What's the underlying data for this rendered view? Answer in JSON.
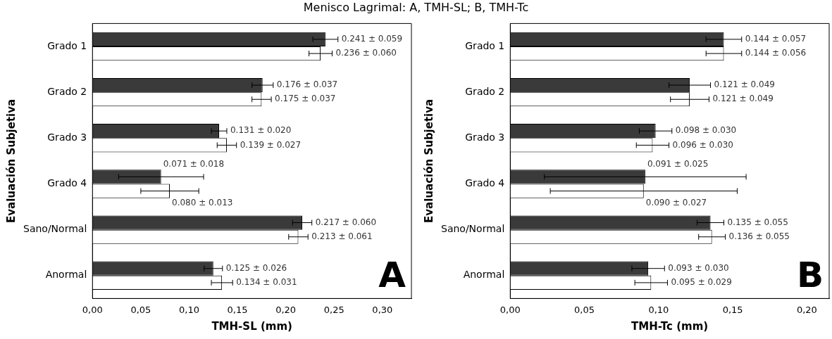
{
  "chart_data": [
    {
      "type": "bar",
      "orientation": "horizontal",
      "title": "Menisco Lagrimal: A, TMH-SL; B, TMH-Tc",
      "categories": [
        "Grado 1",
        "Grado 2",
        "Grado 3",
        "Grado 4",
        "Sano/Normal",
        "Anormal"
      ],
      "series": [
        {
          "color": "#3a3a3a",
          "values": [
            0.241,
            0.176,
            0.131,
            0.071,
            0.217,
            0.125
          ],
          "errors": [
            0.013,
            0.011,
            0.008,
            0.044,
            0.01,
            0.0095
          ],
          "value_labels": [
            "0.241 ± 0.059",
            "0.176 ± 0.037",
            "0.131 ± 0.020",
            "0.071 ± 0.018",
            "0.217 ± 0.060",
            "0.125 ± 0.026"
          ]
        },
        {
          "color": "#ffffff",
          "values": [
            0.236,
            0.175,
            0.139,
            0.08,
            0.213,
            0.134
          ],
          "errors": [
            0.012,
            0.01,
            0.01,
            0.03,
            0.01,
            0.011
          ],
          "value_labels": [
            "0.236 ± 0.060",
            "0.175 ± 0.037",
            "0.139 ± 0.027",
            "0.080 ± 0.013",
            "0.213 ± 0.061",
            "0.134 ± 0.031"
          ]
        }
      ],
      "xlim": [
        0,
        0.33
      ],
      "xticks": [
        {
          "value": 0,
          "label": "0,00"
        },
        {
          "value": 0.05,
          "label": "0,05"
        },
        {
          "value": 0.1,
          "label": "0,10"
        },
        {
          "value": 0.15,
          "label": "0,15"
        },
        {
          "value": 0.2,
          "label": "0,20"
        },
        {
          "value": 0.25,
          "label": "0,25"
        },
        {
          "value": 0.3,
          "label": "0,30"
        }
      ],
      "xlabel": "TMH-SL (mm)",
      "ylabel": "Evaluación Subjetiva",
      "annotations": [
        "A"
      ],
      "grid": false
    },
    {
      "type": "bar",
      "orientation": "horizontal",
      "categories": [
        "Grado 1",
        "Grado 2",
        "Grado 3",
        "Grado 4",
        "Sano/Normal",
        "Anormal"
      ],
      "series": [
        {
          "color": "#3a3a3a",
          "values": [
            0.144,
            0.121,
            0.098,
            0.091,
            0.135,
            0.093
          ],
          "errors": [
            0.012,
            0.014,
            0.011,
            0.068,
            0.009,
            0.011
          ],
          "value_labels": [
            "0.144 ± 0.057",
            "0.121 ± 0.049",
            "0.098 ± 0.030",
            "0.091 ± 0.025",
            "0.135 ± 0.055",
            "0.093 ± 0.030"
          ]
        },
        {
          "color": "#ffffff",
          "values": [
            0.144,
            0.121,
            0.096,
            0.09,
            0.136,
            0.095
          ],
          "errors": [
            0.012,
            0.013,
            0.011,
            0.063,
            0.009,
            0.011
          ],
          "value_labels": [
            "0.144 ± 0.056",
            "0.121 ± 0.049",
            "0.096 ± 0.030",
            "0.090 ± 0.027",
            "0.136 ± 0.055",
            "0.095 ± 0.029"
          ]
        }
      ],
      "xlim": [
        0,
        0.215
      ],
      "xticks": [
        {
          "value": 0,
          "label": "0,00"
        },
        {
          "value": 0.05,
          "label": "0,05"
        },
        {
          "value": 0.1,
          "label": "0,10"
        },
        {
          "value": 0.15,
          "label": "0,15"
        },
        {
          "value": 0.2,
          "label": "0,20"
        }
      ],
      "xlabel": "TMH-Tc (mm)",
      "ylabel": "Evaluación Subjetiva",
      "annotations": [
        "B"
      ],
      "grid": false
    }
  ]
}
